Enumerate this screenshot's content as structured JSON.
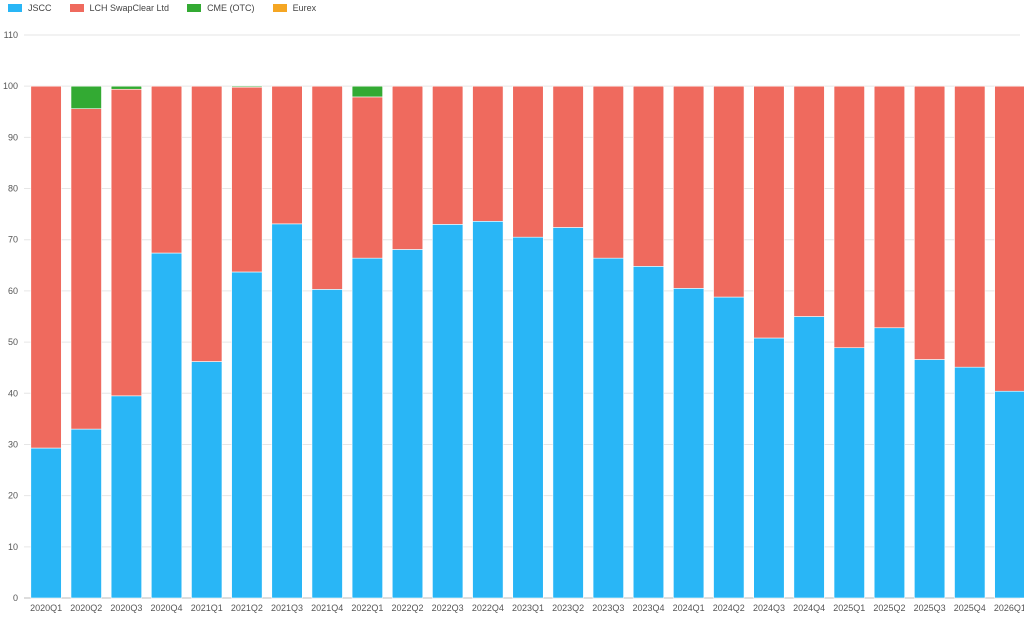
{
  "chart_data": {
    "type": "bar",
    "stacked": true,
    "categories": [
      "2020Q1",
      "2020Q2",
      "2020Q3",
      "2020Q4",
      "2021Q1",
      "2021Q2",
      "2021Q3",
      "2021Q4",
      "2022Q1",
      "2022Q2",
      "2022Q3",
      "2022Q4",
      "2023Q1",
      "2023Q2",
      "2023Q3",
      "2023Q4",
      "2024Q1",
      "2024Q2",
      "2024Q3",
      "2024Q4",
      "2025Q1",
      "2025Q2",
      "2025Q3",
      "2025Q4",
      "2026Q1"
    ],
    "series": [
      {
        "name": "JSCC",
        "color": "#29b6f6",
        "values": [
          29.3,
          33.0,
          39.5,
          67.4,
          46.2,
          63.7,
          73.1,
          60.3,
          66.4,
          68.1,
          73.0,
          73.6,
          70.5,
          72.4,
          66.4,
          64.8,
          60.5,
          58.8,
          50.8,
          55.0,
          48.9,
          52.8,
          46.6,
          45.1,
          40.4
        ]
      },
      {
        "name": "LCH SwapClear Ltd",
        "color": "#ef6a5e",
        "values": [
          70.7,
          62.6,
          59.9,
          32.6,
          53.8,
          36.1,
          26.9,
          39.7,
          31.5,
          31.9,
          27.0,
          26.4,
          29.5,
          27.6,
          33.6,
          35.2,
          39.5,
          41.2,
          49.2,
          45.0,
          51.1,
          47.2,
          53.4,
          54.9,
          59.6
        ]
      },
      {
        "name": "CME (OTC)",
        "color": "#33aa33",
        "values": [
          0,
          4.4,
          0.6,
          0,
          0,
          0.2,
          0,
          0,
          2.1,
          0,
          0,
          0,
          0,
          0,
          0,
          0,
          0,
          0,
          0,
          0,
          0,
          0,
          0,
          0,
          0
        ]
      },
      {
        "name": "Eurex",
        "color": "#f5a623",
        "values": [
          0,
          0,
          0,
          0,
          0,
          0,
          0,
          0,
          0,
          0,
          0,
          0,
          0,
          0,
          0,
          0,
          0,
          0,
          0,
          0,
          0,
          0,
          0,
          0,
          0
        ]
      }
    ],
    "ylim": [
      0,
      110
    ],
    "yticks": [
      0,
      10,
      20,
      30,
      40,
      50,
      60,
      70,
      80,
      90,
      100,
      110
    ],
    "grid": true,
    "legend_position": "top-left",
    "title": "",
    "xlabel": "",
    "ylabel": ""
  }
}
